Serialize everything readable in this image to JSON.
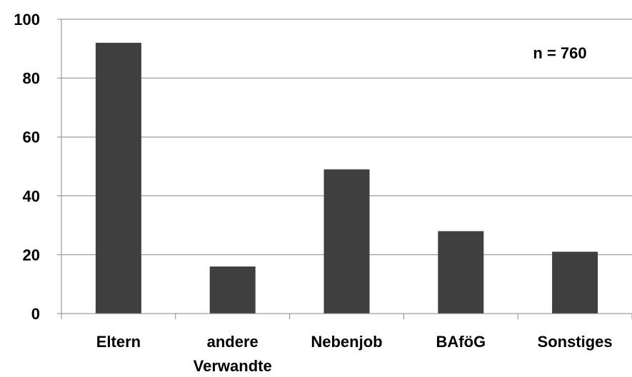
{
  "chart_data": {
    "type": "bar",
    "categories": [
      [
        "Eltern"
      ],
      [
        "andere",
        "Verwandte"
      ],
      [
        "Nebenjob"
      ],
      [
        "BAföG"
      ],
      [
        "Sonstiges"
      ]
    ],
    "values": [
      92,
      16,
      49,
      28,
      21
    ],
    "ylim": [
      0,
      100
    ],
    "yticks": [
      "0",
      "20",
      "40",
      "60",
      "80",
      "100"
    ],
    "annotation": "n = 760",
    "grid": true,
    "bar_color": "#3f3f3f",
    "grid_color": "#868686",
    "axis_color": "#868686"
  }
}
